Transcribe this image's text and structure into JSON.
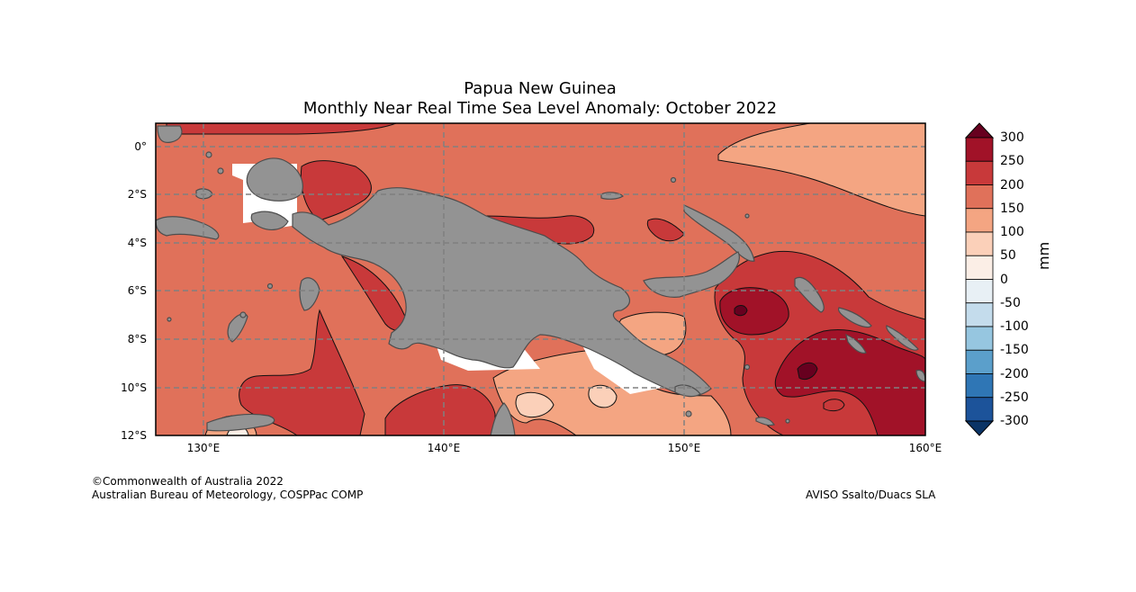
{
  "title": "Papua New Guinea",
  "subtitle": "Monthly Near Real Time Sea Level Anomaly: October 2022",
  "lat_ticks": [
    "0°",
    "2°S",
    "4°S",
    "6°S",
    "8°S",
    "10°S",
    "12°S"
  ],
  "lon_ticks": [
    "130°E",
    "140°E",
    "150°E",
    "160°E"
  ],
  "colorbar": {
    "unit": "mm",
    "ticks": [
      "300",
      "250",
      "200",
      "150",
      "100",
      "50",
      "0",
      "-50",
      "-100",
      "-150",
      "-200",
      "-250",
      "-300"
    ],
    "colors": [
      "#a11228",
      "#c8393a",
      "#e0715a",
      "#f4a582",
      "#fbd0b9",
      "#fbeee6",
      "#e8f0f5",
      "#c4dcec",
      "#96c6e0",
      "#5b9fcb",
      "#2f76b5",
      "#1c539a"
    ],
    "extend_top": "#67001f",
    "extend_bottom": "#0b3466"
  },
  "colors": {
    "land": "#939393",
    "base": "#e0715a"
  },
  "footer": {
    "copyright": "©Commonwealth of Australia 2022",
    "agency": "Australian Bureau of Meteorology, COSPPac COMP",
    "source": "AVISO Ssalto/Duacs SLA"
  }
}
